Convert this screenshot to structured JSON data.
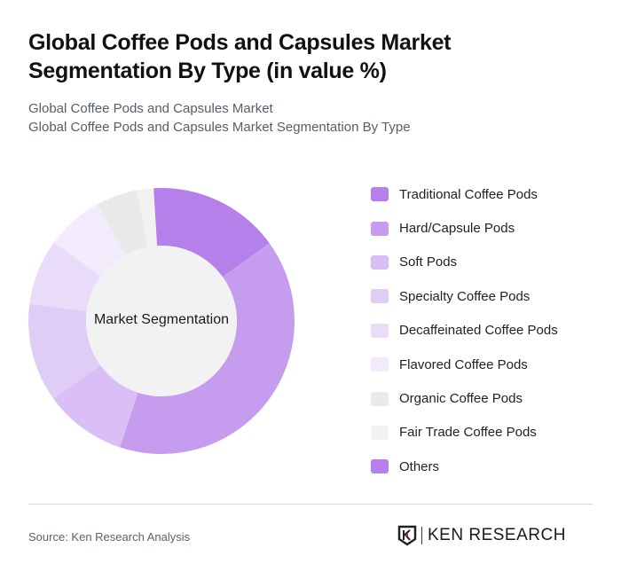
{
  "header": {
    "title": "Global Coffee Pods and Capsules Market Segmentation By Type (in value %)",
    "subtitle_line1": "Global Coffee Pods and Capsules Market",
    "subtitle_line2": "Global Coffee Pods and Capsules Market Segmentation By Type"
  },
  "chart_data": {
    "type": "pie",
    "variant": "donut",
    "title": "Global Coffee Pods and Capsules Market Segmentation By Type (in value %)",
    "center_label": "Market Segmentation",
    "categories": [
      "Traditional Coffee Pods",
      "Hard/Capsule Pods",
      "Soft Pods",
      "Specialty Coffee Pods",
      "Decaffeinated Coffee Pods",
      "Flavored Coffee Pods",
      "Organic Coffee Pods",
      "Fair Trade Coffee Pods",
      "Others"
    ],
    "values": [
      16,
      40,
      10,
      12,
      8,
      7,
      5,
      2,
      0
    ],
    "colors": [
      "#b580ea",
      "#c59cee",
      "#d9bff5",
      "#e0cdf6",
      "#e9dcf9",
      "#f1ebfc",
      "#e9e9e9",
      "#f2f2f2",
      "#b580ea"
    ],
    "legend_position": "right",
    "unit": "%"
  },
  "legend": {
    "items": [
      {
        "label": "Traditional Coffee Pods",
        "color": "#b580ea"
      },
      {
        "label": "Hard/Capsule Pods",
        "color": "#c59cee"
      },
      {
        "label": "Soft Pods",
        "color": "#d9bff5"
      },
      {
        "label": "Specialty Coffee Pods",
        "color": "#e0cdf6"
      },
      {
        "label": "Decaffeinated Coffee Pods",
        "color": "#e9dcf9"
      },
      {
        "label": "Flavored Coffee Pods",
        "color": "#f1ebfc"
      },
      {
        "label": "Organic Coffee Pods",
        "color": "#e9e9e9"
      },
      {
        "label": "Fair Trade Coffee Pods",
        "color": "#f2f2f2"
      },
      {
        "label": "Others",
        "color": "#b580ea"
      }
    ]
  },
  "footer": {
    "source": "Source: Ken Research Analysis",
    "logo_text": "KEN RESEARCH"
  }
}
